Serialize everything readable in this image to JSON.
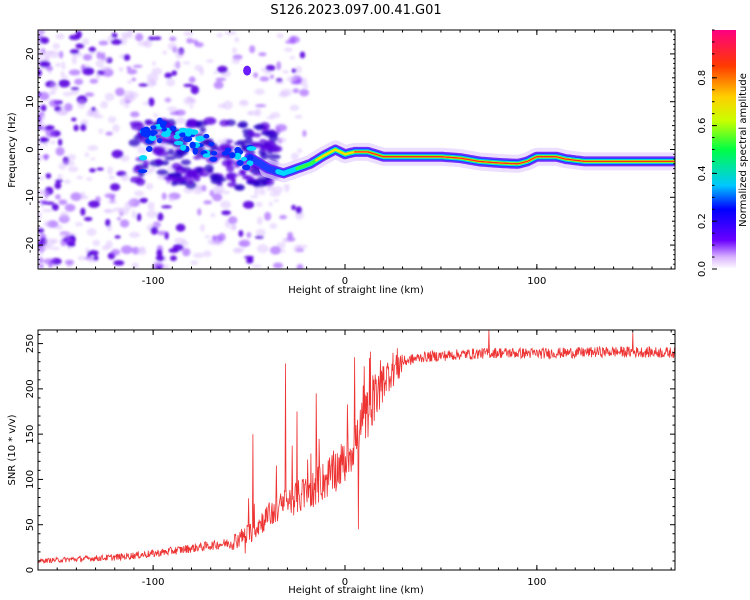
{
  "figure": {
    "title": "S126.2023.097.00.41.G01"
  },
  "chart_data": [
    {
      "type": "heatmap",
      "xlabel": "Height of straight line (km)",
      "ylabel": "Frequency (Hz)",
      "xlim": [
        -160,
        172
      ],
      "ylim": [
        -25,
        25
      ],
      "x_ticks": [
        -100,
        0,
        100
      ],
      "y_ticks": [
        -20,
        -10,
        0,
        10,
        20
      ],
      "colorbar": {
        "label": "Normalized spectral amplitude",
        "range": [
          0,
          1
        ],
        "ticks": [
          "0.0",
          "0.2",
          "0.4",
          "0.6",
          "0.8"
        ]
      },
      "ridge": {
        "description_free": true,
        "points": [
          [
            -105,
            2
          ],
          [
            -95,
            4
          ],
          [
            -85,
            3
          ],
          [
            -75,
            1
          ],
          [
            -65,
            0
          ],
          [
            -55,
            -1
          ],
          [
            -48,
            -2
          ],
          [
            -40,
            -4
          ],
          [
            -32,
            -5
          ],
          [
            -25,
            -4
          ],
          [
            -18,
            -3
          ],
          [
            -12,
            -1.5
          ],
          [
            -5,
            0
          ],
          [
            0,
            -1
          ],
          [
            5,
            -0.5
          ],
          [
            12,
            -0.5
          ],
          [
            20,
            -1.5
          ],
          [
            35,
            -1.5
          ],
          [
            50,
            -1.5
          ],
          [
            60,
            -1.8
          ],
          [
            70,
            -2.5
          ],
          [
            80,
            -2.8
          ],
          [
            90,
            -3
          ],
          [
            95,
            -2.5
          ],
          [
            100,
            -1.5
          ],
          [
            110,
            -1.5
          ],
          [
            115,
            -2
          ],
          [
            125,
            -2.5
          ],
          [
            140,
            -2.5
          ],
          [
            155,
            -2.5
          ],
          [
            170,
            -2.5
          ]
        ]
      }
    },
    {
      "type": "line",
      "xlabel": "Height of straight line (km)",
      "ylabel": "SNR (10 * v/v)",
      "xlim": [
        -160,
        172
      ],
      "ylim": [
        0,
        265
      ],
      "x_ticks": [
        -100,
        0,
        100
      ],
      "y_ticks": [
        0,
        50,
        100,
        150,
        200,
        250
      ],
      "color": "#ee3333",
      "series": [
        {
          "trend": [
            [
              -160,
              10
            ],
            [
              -120,
              14
            ],
            [
              -100,
              18
            ],
            [
              -80,
              24
            ],
            [
              -60,
              30
            ],
            [
              -50,
              40
            ],
            [
              -40,
              60
            ],
            [
              -30,
              75
            ],
            [
              -20,
              85
            ],
            [
              -10,
              100
            ],
            [
              0,
              120
            ],
            [
              5,
              140
            ],
            [
              10,
              165
            ],
            [
              15,
              190
            ],
            [
              20,
              210
            ],
            [
              25,
              222
            ],
            [
              30,
              230
            ],
            [
              40,
              235
            ],
            [
              60,
              238
            ],
            [
              80,
              240
            ],
            [
              100,
              239
            ],
            [
              120,
              240
            ],
            [
              140,
              241
            ],
            [
              172,
              240
            ]
          ],
          "spikes": [
            [
              -48,
              150
            ],
            [
              -31,
              228
            ],
            [
              -25,
              175
            ],
            [
              -15,
              195
            ],
            [
              5,
              235
            ],
            [
              7,
              45
            ],
            [
              10,
              225
            ],
            [
              14,
              160
            ],
            [
              75,
              265
            ],
            [
              150,
              262
            ]
          ]
        }
      ]
    }
  ]
}
